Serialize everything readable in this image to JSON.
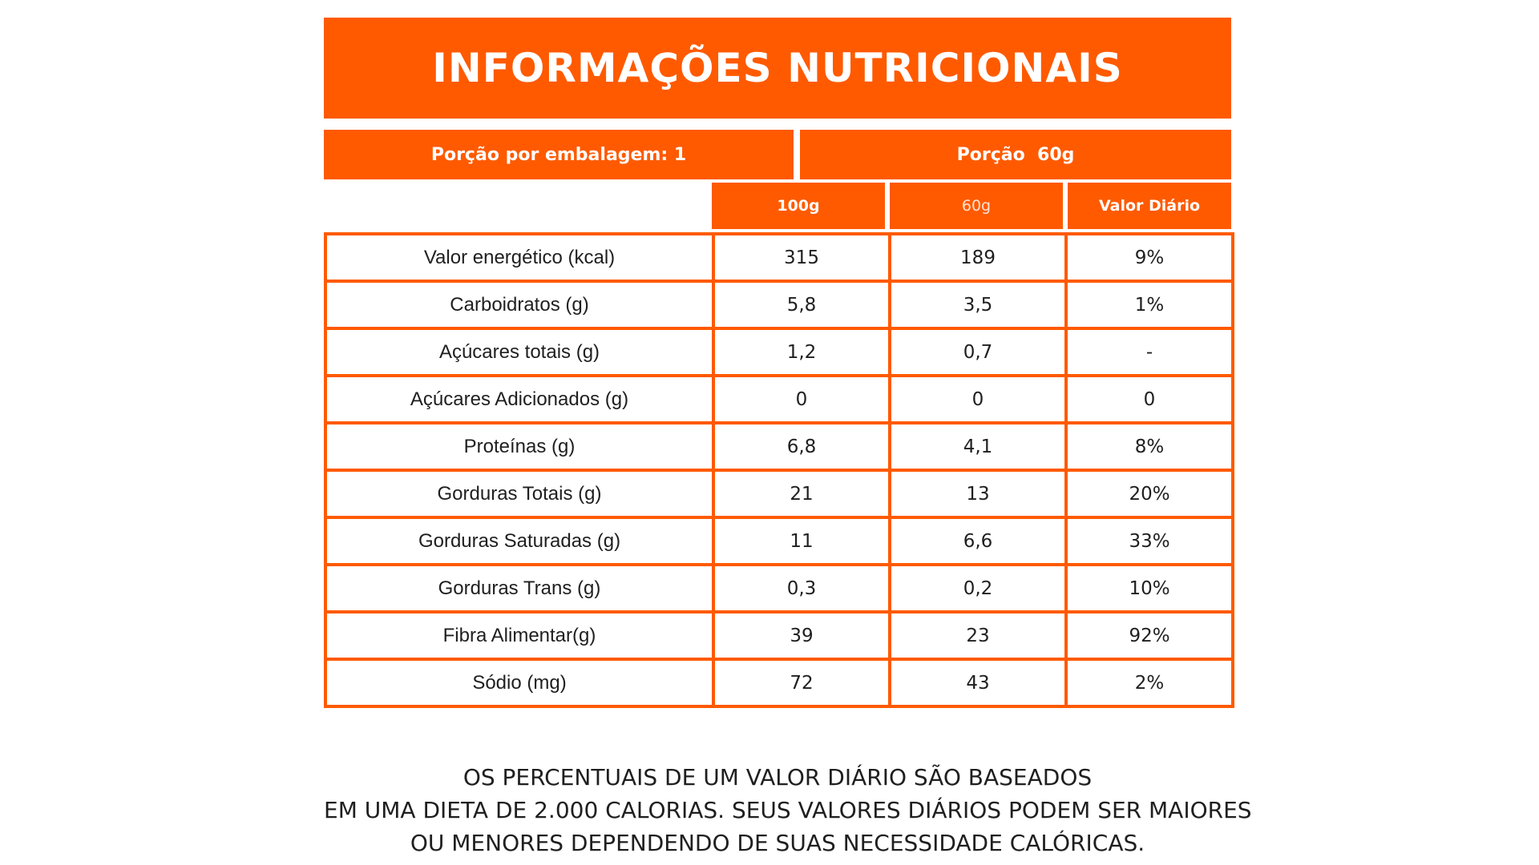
{
  "title": "INFORMAÇÕES NUTRICIONAIS",
  "portion": {
    "per_package": "Porção por embalagem: 1",
    "size": "Porção  60g"
  },
  "columns": {
    "c100g": "100g",
    "c60g": "60g",
    "daily": "Valor Diário"
  },
  "rows": [
    {
      "label": "Valor energético (kcal)",
      "v100": "315",
      "v60": "189",
      "vd": "9%"
    },
    {
      "label": "Carboidratos (g)",
      "v100": "5,8",
      "v60": "3,5",
      "vd": "1%"
    },
    {
      "label": "Açúcares totais (g)",
      "v100": "1,2",
      "v60": "0,7",
      "vd": "-"
    },
    {
      "label": "Açúcares Adicionados (g)",
      "v100": "0",
      "v60": "0",
      "vd": "0"
    },
    {
      "label": "Proteínas (g)",
      "v100": "6,8",
      "v60": "4,1",
      "vd": "8%"
    },
    {
      "label": "Gorduras Totais (g)",
      "v100": "21",
      "v60": "13",
      "vd": "20%"
    },
    {
      "label": "Gorduras Saturadas (g)",
      "v100": "11",
      "v60": "6,6",
      "vd": "33%"
    },
    {
      "label": "Gorduras Trans (g)",
      "v100": "0,3",
      "v60": "0,2",
      "vd": "10%"
    },
    {
      "label": "Fibra Alimentar(g)",
      "v100": "39",
      "v60": "23",
      "vd": "92%"
    },
    {
      "label": "Sódio (mg)",
      "v100": "72",
      "v60": "43",
      "vd": "2%"
    }
  ],
  "footnote": [
    "OS PERCENTUAIS DE UM VALOR DIÁRIO SÃO BASEADOS",
    "EM UMA DIETA DE 2.000 CALORIAS. SEUS VALORES DIÁRIOS PODEM SER MAIORES",
    "OU MENORES DEPENDENDO DE SUAS NECESSIDADE CALÓRICAS."
  ],
  "colors": {
    "accent": "#ff5a00",
    "background": "#ffffff",
    "text": "#1f1f1f"
  }
}
